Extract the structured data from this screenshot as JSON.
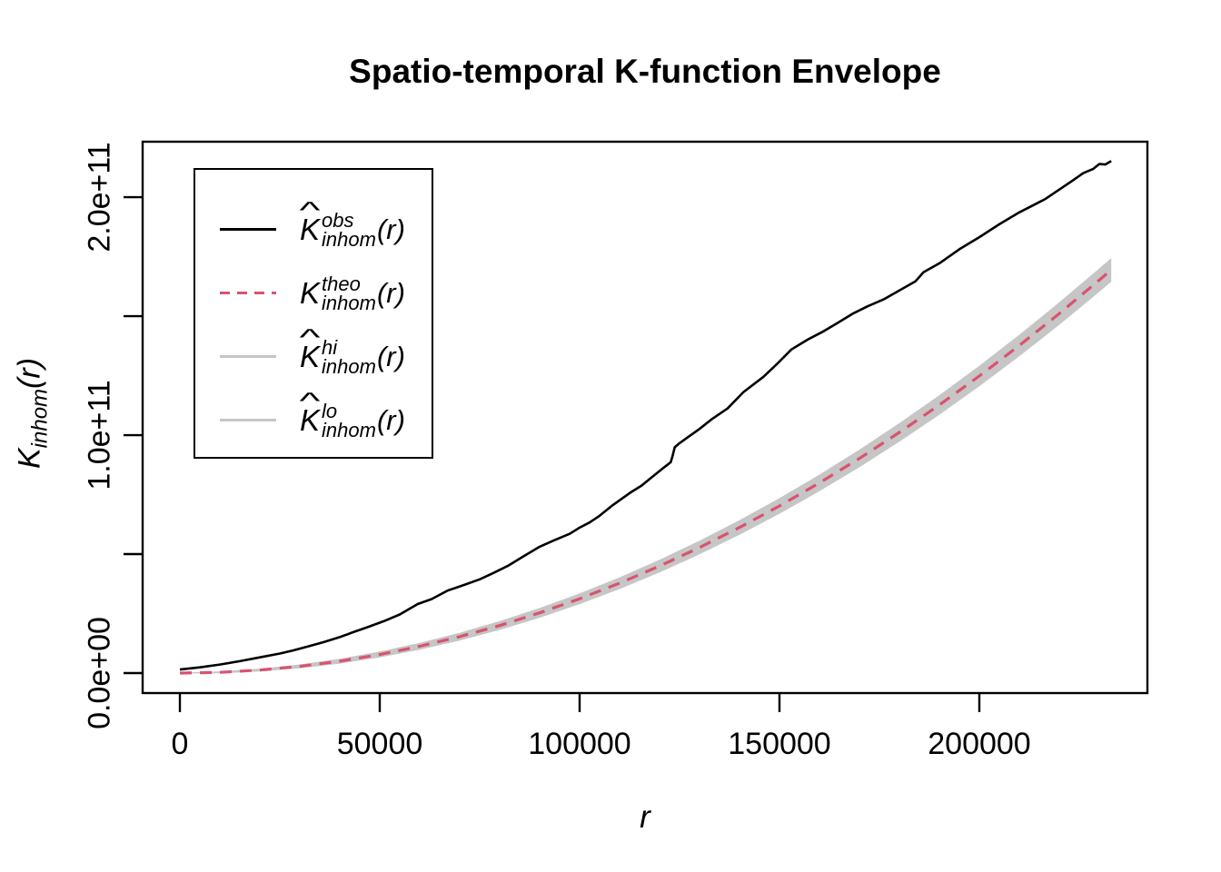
{
  "title": "Spatio-temporal K-function Envelope",
  "colors": {
    "obs": "#000000",
    "theo": "#d9536f",
    "band": "#c6c6c6",
    "envelope_line": "#c6c6c6",
    "frame": "#000000",
    "background": "#ffffff"
  },
  "x_axis": {
    "label_main": "r",
    "ticks": [
      {
        "value": 0,
        "label": "0"
      },
      {
        "value": 50000,
        "label": "50000"
      },
      {
        "value": 100000,
        "label": "100000"
      },
      {
        "value": 150000,
        "label": "150000"
      },
      {
        "value": 200000,
        "label": "200000"
      }
    ]
  },
  "y_axis": {
    "label_k": "K",
    "label_sub": "inhom",
    "label_arg": "(r)",
    "ticks": [
      {
        "value": 0.0,
        "label": "0.0e+00"
      },
      {
        "value": 0.5,
        "label": ""
      },
      {
        "value": 1.0,
        "label": "1.0e+11"
      },
      {
        "value": 1.5,
        "label": ""
      },
      {
        "value": 2.0,
        "label": "2.0e+11"
      }
    ]
  },
  "legend": {
    "items": [
      {
        "k": "K",
        "hat": "^",
        "sup": "obs",
        "sub": "inhom",
        "arg": "(r)",
        "color": "#000000",
        "style": "solid"
      },
      {
        "k": "K",
        "hat": "",
        "sup": "theo",
        "sub": "inhom",
        "arg": "(r)",
        "color": "#d9536f",
        "style": "dashed"
      },
      {
        "k": "K",
        "hat": "^",
        "sup": "hi",
        "sub": "inhom",
        "arg": "(r)",
        "color": "#c6c6c6",
        "style": "solid"
      },
      {
        "k": "K",
        "hat": "^",
        "sup": "lo",
        "sub": "inhom",
        "arg": "(r)",
        "color": "#c6c6c6",
        "style": "solid"
      }
    ]
  },
  "chart_data": {
    "type": "line",
    "title": "Spatio-temporal K-function Envelope",
    "xlabel": "r",
    "ylabel": "K_inhom(r)",
    "value_unit": 100000000000.0,
    "xlim": [
      -9320,
      242050
    ],
    "ylim": [
      -0.084,
      2.233
    ],
    "grid": false,
    "legend_position": "top-left",
    "series": {
      "obs": {
        "name": "K^obs_inhom(r)",
        "points": [
          [
            0,
            0.015
          ],
          [
            5000,
            0.024
          ],
          [
            10000,
            0.036
          ],
          [
            15000,
            0.05
          ],
          [
            20000,
            0.066
          ],
          [
            25000,
            0.082
          ],
          [
            28300,
            0.095
          ],
          [
            32000,
            0.112
          ],
          [
            36000,
            0.13
          ],
          [
            40000,
            0.151
          ],
          [
            43400,
            0.172
          ],
          [
            47000,
            0.193
          ],
          [
            51000,
            0.218
          ],
          [
            55000,
            0.246
          ],
          [
            59500,
            0.29
          ],
          [
            63000,
            0.311
          ],
          [
            67000,
            0.347
          ],
          [
            71000,
            0.37
          ],
          [
            75000,
            0.394
          ],
          [
            78500,
            0.421
          ],
          [
            82000,
            0.45
          ],
          [
            86000,
            0.491
          ],
          [
            90000,
            0.531
          ],
          [
            93500,
            0.557
          ],
          [
            97500,
            0.585
          ],
          [
            100000,
            0.611
          ],
          [
            102500,
            0.633
          ],
          [
            105000,
            0.661
          ],
          [
            108000,
            0.702
          ],
          [
            112500,
            0.756
          ],
          [
            115500,
            0.788
          ],
          [
            118000,
            0.822
          ],
          [
            120500,
            0.856
          ],
          [
            122800,
            0.886
          ],
          [
            123300,
            0.915
          ],
          [
            123800,
            0.949
          ],
          [
            125000,
            0.966
          ],
          [
            127000,
            0.99
          ],
          [
            130000,
            1.026
          ],
          [
            133000,
            1.066
          ],
          [
            137000,
            1.112
          ],
          [
            141000,
            1.181
          ],
          [
            146000,
            1.245
          ],
          [
            149500,
            1.301
          ],
          [
            153000,
            1.36
          ],
          [
            157000,
            1.401
          ],
          [
            161000,
            1.436
          ],
          [
            164500,
            1.471
          ],
          [
            168500,
            1.512
          ],
          [
            172000,
            1.541
          ],
          [
            176000,
            1.57
          ],
          [
            180000,
            1.608
          ],
          [
            184000,
            1.646
          ],
          [
            186000,
            1.684
          ],
          [
            190000,
            1.722
          ],
          [
            195000,
            1.781
          ],
          [
            200000,
            1.832
          ],
          [
            205000,
            1.886
          ],
          [
            210000,
            1.936
          ],
          [
            216500,
            1.992
          ],
          [
            220000,
            2.032
          ],
          [
            223000,
            2.066
          ],
          [
            226000,
            2.101
          ],
          [
            228500,
            2.119
          ],
          [
            230000,
            2.139
          ],
          [
            231500,
            2.137
          ],
          [
            233000,
            2.152
          ]
        ]
      },
      "theo": {
        "name": "K^theo_inhom(r)",
        "points": [
          [
            0,
            0.0
          ],
          [
            10000,
            0.0031
          ],
          [
            20000,
            0.0125
          ],
          [
            30000,
            0.0281
          ],
          [
            40000,
            0.0499
          ],
          [
            50000,
            0.078
          ],
          [
            60000,
            0.1124
          ],
          [
            70000,
            0.153
          ],
          [
            80000,
            0.1998
          ],
          [
            90000,
            0.2529
          ],
          [
            100000,
            0.3122
          ],
          [
            110000,
            0.3777
          ],
          [
            120000,
            0.4495
          ],
          [
            130000,
            0.5276
          ],
          [
            140000,
            0.6118
          ],
          [
            150000,
            0.7024
          ],
          [
            160000,
            0.7991
          ],
          [
            170000,
            0.9021
          ],
          [
            180000,
            1.0114
          ],
          [
            190000,
            1.1268
          ],
          [
            200000,
            1.2486
          ],
          [
            210000,
            1.3765
          ],
          [
            220000,
            1.5108
          ],
          [
            230000,
            1.6512
          ],
          [
            233000,
            1.6944
          ]
        ]
      },
      "hi": {
        "name": "K^hi_inhom(r)",
        "points": [
          [
            0,
            0.002
          ],
          [
            10000,
            0.0072
          ],
          [
            20000,
            0.0186
          ],
          [
            30000,
            0.0363
          ],
          [
            40000,
            0.0601
          ],
          [
            50000,
            0.0903
          ],
          [
            60000,
            0.1268
          ],
          [
            70000,
            0.1694
          ],
          [
            80000,
            0.2183
          ],
          [
            90000,
            0.2734
          ],
          [
            100000,
            0.3348
          ],
          [
            110000,
            0.4024
          ],
          [
            120000,
            0.4762
          ],
          [
            130000,
            0.5564
          ],
          [
            140000,
            0.6426
          ],
          [
            150000,
            0.7353
          ],
          [
            160000,
            0.8341
          ],
          [
            170000,
            0.9391
          ],
          [
            180000,
            1.0505
          ],
          [
            190000,
            1.1679
          ],
          [
            200000,
            1.2918
          ],
          [
            210000,
            1.4218
          ],
          [
            220000,
            1.5581
          ],
          [
            230000,
            1.7006
          ],
          [
            233000,
            1.7444
          ]
        ]
      },
      "lo": {
        "name": "K^lo_inhom(r)",
        "points": [
          [
            0,
            -0.002
          ],
          [
            10000,
            -0.001
          ],
          [
            20000,
            0.0064
          ],
          [
            30000,
            0.0199
          ],
          [
            40000,
            0.0397
          ],
          [
            50000,
            0.0657
          ],
          [
            60000,
            0.098
          ],
          [
            70000,
            0.1366
          ],
          [
            80000,
            0.1813
          ],
          [
            90000,
            0.2324
          ],
          [
            100000,
            0.2896
          ],
          [
            110000,
            0.353
          ],
          [
            120000,
            0.4228
          ],
          [
            130000,
            0.4988
          ],
          [
            140000,
            0.581
          ],
          [
            150000,
            0.6695
          ],
          [
            160000,
            0.7641
          ],
          [
            170000,
            0.8651
          ],
          [
            180000,
            0.9723
          ],
          [
            190000,
            1.0857
          ],
          [
            200000,
            1.2054
          ],
          [
            210000,
            1.3312
          ],
          [
            220000,
            1.4635
          ],
          [
            230000,
            1.6018
          ],
          [
            233000,
            1.6444
          ]
        ]
      }
    }
  }
}
